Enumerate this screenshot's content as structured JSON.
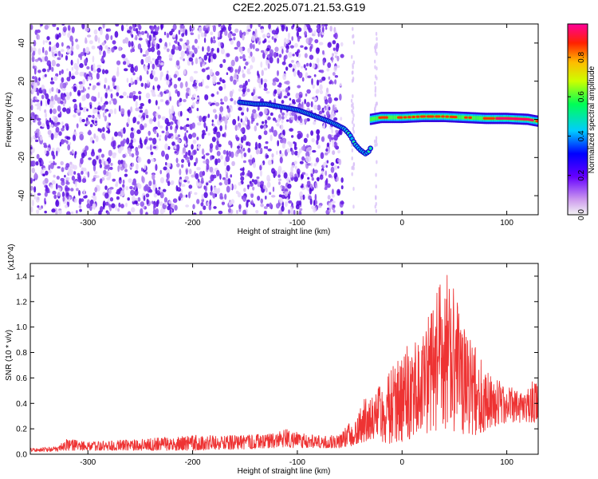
{
  "figure": {
    "title": "C2E2.2025.071.21.53.G19"
  },
  "chart_data": [
    {
      "type": "heatmap",
      "xlabel": "Height of straight line (km)",
      "ylabel": "Frequency (Hz)",
      "xlim": [
        -355,
        130
      ],
      "ylim": [
        -50,
        50
      ],
      "xticks": [
        -300,
        -200,
        -100,
        0,
        100
      ],
      "yticks": [
        -40,
        -20,
        0,
        20,
        40
      ],
      "colorbar": {
        "label": "Normalized spectral amplitude",
        "range": [
          0,
          0.97
        ],
        "ticks": [
          0.0,
          0.2,
          0.4,
          0.6,
          0.8
        ]
      },
      "noise_region": {
        "x_from": -355,
        "x_to": -57,
        "secondary_stripes_x": [
          -47,
          -25
        ]
      },
      "ridge": {
        "x": [
          -155,
          -140,
          -130,
          -120,
          -110,
          -100,
          -90,
          -80,
          -70,
          -62,
          -55,
          -50,
          -45,
          -40,
          -35,
          -32,
          -30
        ],
        "y": [
          9,
          8,
          8,
          7,
          6,
          5,
          3,
          1,
          -1,
          -3,
          -5,
          -8,
          -13,
          -16,
          -18,
          -17,
          -15
        ]
      },
      "trace_after": {
        "x": [
          -30,
          -20,
          -10,
          0,
          20,
          40,
          60,
          80,
          100,
          120,
          130
        ],
        "y": [
          0,
          1,
          1,
          1,
          1.5,
          1.5,
          1,
          0.5,
          0.5,
          0,
          -1
        ],
        "peak_from_x": 20,
        "peak_to_x": 130
      },
      "grid": false
    },
    {
      "type": "line",
      "xlabel": "Height of straight line (km)",
      "ylabel": "SNR (10 * v/v)",
      "multiplier": "(x10^4)",
      "xlim": [
        -355,
        130
      ],
      "ylim": [
        0,
        1.5
      ],
      "xticks": [
        -300,
        -200,
        -100,
        0,
        100
      ],
      "yticks": [
        0.0,
        0.2,
        0.4,
        0.6,
        0.8,
        1.0,
        1.2,
        1.4
      ],
      "color": "#ee3333",
      "envelope": {
        "x": [
          -355,
          -330,
          -320,
          -300,
          -250,
          -200,
          -150,
          -120,
          -110,
          -105,
          -80,
          -60,
          -45,
          -35,
          -30,
          -20,
          -10,
          0,
          10,
          20,
          30,
          40,
          45,
          50,
          60,
          70,
          80,
          90,
          100,
          110,
          120,
          130
        ],
        "min": [
          0.02,
          0.02,
          0.03,
          0.03,
          0.03,
          0.03,
          0.04,
          0.05,
          0.06,
          0.05,
          0.05,
          0.05,
          0.07,
          0.1,
          0.12,
          0.1,
          0.08,
          0.1,
          0.12,
          0.15,
          0.18,
          0.2,
          0.2,
          0.18,
          0.15,
          0.15,
          0.18,
          0.22,
          0.25,
          0.25,
          0.25,
          0.25
        ],
        "max": [
          0.05,
          0.06,
          0.12,
          0.1,
          0.12,
          0.15,
          0.15,
          0.17,
          0.2,
          0.18,
          0.15,
          0.15,
          0.3,
          0.45,
          0.5,
          0.55,
          0.7,
          0.8,
          0.95,
          1.1,
          1.25,
          1.4,
          1.45,
          1.3,
          1.0,
          0.85,
          0.65,
          0.6,
          0.55,
          0.5,
          0.55,
          0.6
        ]
      },
      "grid": false
    }
  ]
}
